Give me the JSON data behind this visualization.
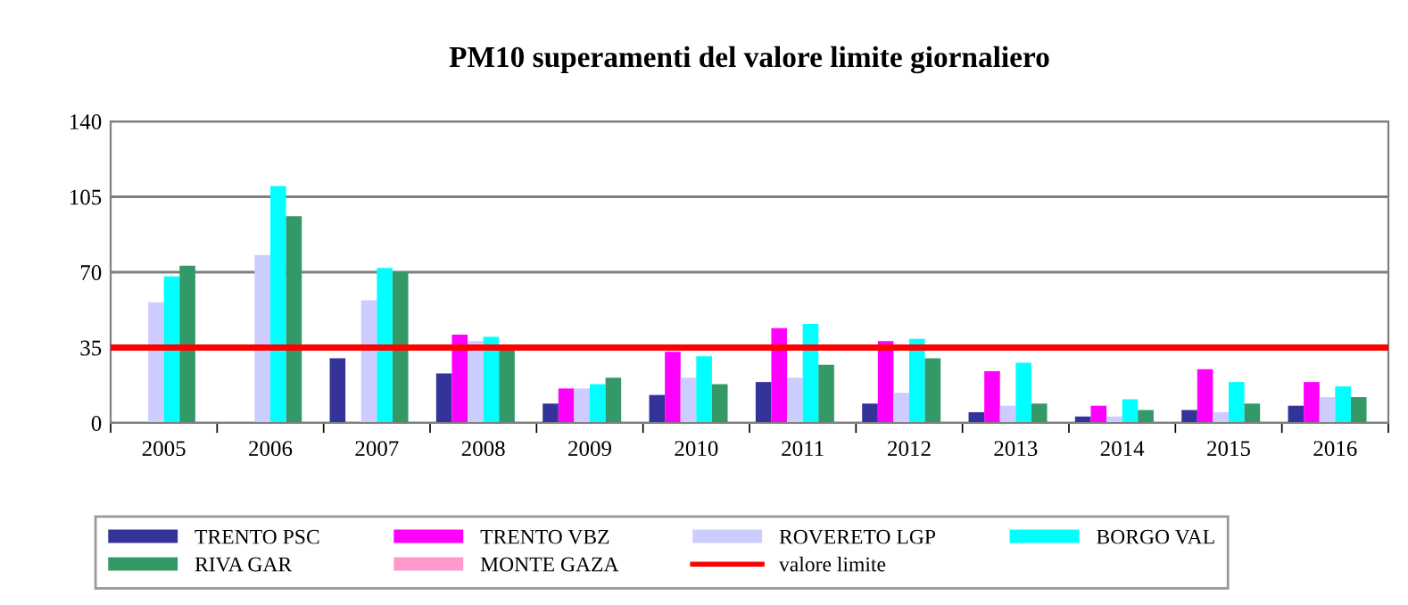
{
  "chart_data": {
    "type": "bar",
    "title": "PM10 superamenti del valore limite giornaliero",
    "categories": [
      "2005",
      "2006",
      "2007",
      "2008",
      "2009",
      "2010",
      "2011",
      "2012",
      "2013",
      "2014",
      "2015",
      "2016"
    ],
    "series": [
      {
        "name": "TRENTO PSC",
        "color": "#333399",
        "values": [
          null,
          null,
          30,
          23,
          9,
          13,
          19,
          9,
          5,
          3,
          6,
          8
        ]
      },
      {
        "name": "TRENTO VBZ",
        "color": "#ff00ff",
        "values": [
          null,
          null,
          null,
          41,
          16,
          33,
          44,
          38,
          24,
          8,
          25,
          19
        ]
      },
      {
        "name": "ROVERETO LGP",
        "color": "#ccccff",
        "values": [
          56,
          78,
          57,
          38,
          16,
          21,
          21,
          14,
          8,
          3,
          5,
          12
        ]
      },
      {
        "name": "BORGO VAL",
        "color": "#00ffff",
        "values": [
          68,
          110,
          72,
          40,
          18,
          31,
          46,
          39,
          28,
          11,
          19,
          17
        ]
      },
      {
        "name": "RIVA GAR",
        "color": "#339966",
        "values": [
          73,
          96,
          70,
          35,
          21,
          18,
          27,
          30,
          9,
          6,
          9,
          12
        ]
      },
      {
        "name": "MONTE GAZA",
        "color": "#ff99cc",
        "values": [
          null,
          null,
          null,
          null,
          null,
          null,
          null,
          null,
          null,
          null,
          null,
          null
        ]
      }
    ],
    "ref_lines": [
      {
        "axis": "y",
        "value": 35,
        "label": "valore limite",
        "color": "#ff0000"
      }
    ],
    "ylim": [
      0,
      140
    ],
    "yticks": [
      0,
      35,
      70,
      105,
      140
    ],
    "grid": "y",
    "legend": "bottom"
  }
}
